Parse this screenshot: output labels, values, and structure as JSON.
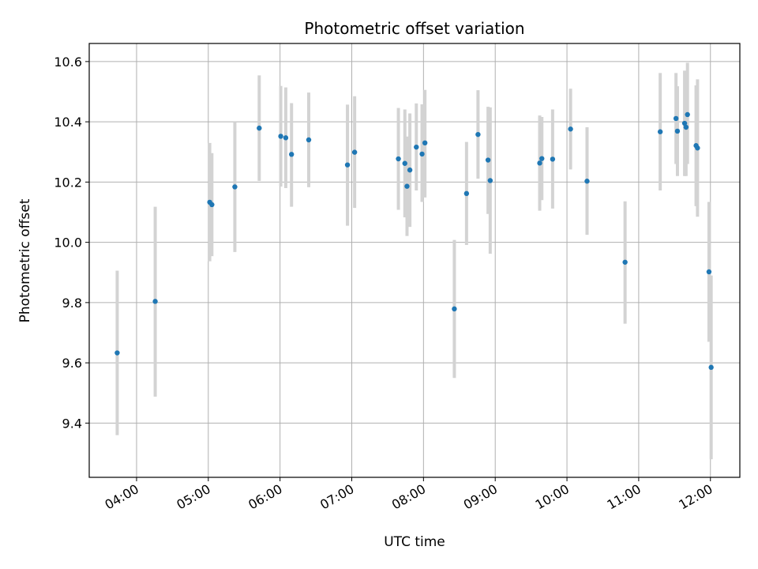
{
  "chart_data": {
    "type": "scatter",
    "title": "Photometric offset variation",
    "xlabel": "UTC time",
    "ylabel": "Photometric offset",
    "x_unit": "UTC hours",
    "x_ticks": [
      {
        "value": 4,
        "label": "04:00"
      },
      {
        "value": 5,
        "label": "05:00"
      },
      {
        "value": 6,
        "label": "06:00"
      },
      {
        "value": 7,
        "label": "07:00"
      },
      {
        "value": 8,
        "label": "08:00"
      },
      {
        "value": 9,
        "label": "09:00"
      },
      {
        "value": 10,
        "label": "10:00"
      },
      {
        "value": 11,
        "label": "11:00"
      },
      {
        "value": 12,
        "label": "12:00"
      }
    ],
    "y_ticks": [
      {
        "value": 9.4,
        "label": "9.4"
      },
      {
        "value": 9.6,
        "label": "9.6"
      },
      {
        "value": 9.8,
        "label": "9.8"
      },
      {
        "value": 10.0,
        "label": "10.0"
      },
      {
        "value": 10.2,
        "label": "10.2"
      },
      {
        "value": 10.4,
        "label": "10.4"
      },
      {
        "value": 10.6,
        "label": "10.6"
      }
    ],
    "xlim": [
      3.34,
      12.41
    ],
    "ylim": [
      9.22,
      10.66
    ],
    "grid": true,
    "colors": {
      "point": "#1f77b4",
      "errorbar": "#d3d3d3",
      "grid": "#b0b0b0"
    },
    "points": [
      {
        "x": 3.73,
        "y": 9.633,
        "lo": 9.36,
        "hi": 9.906
      },
      {
        "x": 4.26,
        "y": 9.804,
        "lo": 9.488,
        "hi": 10.118
      },
      {
        "x": 5.02,
        "y": 10.133,
        "lo": 9.937,
        "hi": 10.33
      },
      {
        "x": 5.05,
        "y": 10.125,
        "lo": 9.954,
        "hi": 10.296
      },
      {
        "x": 5.37,
        "y": 10.184,
        "lo": 9.968,
        "hi": 10.4
      },
      {
        "x": 5.71,
        "y": 10.379,
        "lo": 10.204,
        "hi": 10.554
      },
      {
        "x": 6.01,
        "y": 10.352,
        "lo": 10.185,
        "hi": 10.519
      },
      {
        "x": 6.08,
        "y": 10.347,
        "lo": 10.18,
        "hi": 10.514
      },
      {
        "x": 6.16,
        "y": 10.292,
        "lo": 10.118,
        "hi": 10.462
      },
      {
        "x": 6.4,
        "y": 10.34,
        "lo": 10.183,
        "hi": 10.497
      },
      {
        "x": 6.94,
        "y": 10.257,
        "lo": 10.055,
        "hi": 10.457
      },
      {
        "x": 7.04,
        "y": 10.299,
        "lo": 10.114,
        "hi": 10.485
      },
      {
        "x": 7.65,
        "y": 10.277,
        "lo": 10.108,
        "hi": 10.446
      },
      {
        "x": 7.74,
        "y": 10.262,
        "lo": 10.083,
        "hi": 10.441
      },
      {
        "x": 7.77,
        "y": 10.186,
        "lo": 10.021,
        "hi": 10.351
      },
      {
        "x": 7.81,
        "y": 10.24,
        "lo": 10.051,
        "hi": 10.428
      },
      {
        "x": 7.9,
        "y": 10.316,
        "lo": 10.172,
        "hi": 10.461
      },
      {
        "x": 7.98,
        "y": 10.293,
        "lo": 10.134,
        "hi": 10.458
      },
      {
        "x": 8.02,
        "y": 10.33,
        "lo": 10.149,
        "hi": 10.506
      },
      {
        "x": 8.43,
        "y": 9.779,
        "lo": 9.55,
        "hi": 10.008
      },
      {
        "x": 8.6,
        "y": 10.162,
        "lo": 9.991,
        "hi": 10.333
      },
      {
        "x": 8.76,
        "y": 10.358,
        "lo": 10.211,
        "hi": 10.505
      },
      {
        "x": 8.9,
        "y": 10.273,
        "lo": 10.094,
        "hi": 10.45
      },
      {
        "x": 8.93,
        "y": 10.205,
        "lo": 9.962,
        "hi": 10.448
      },
      {
        "x": 9.62,
        "y": 10.263,
        "lo": 10.105,
        "hi": 10.421
      },
      {
        "x": 9.65,
        "y": 10.278,
        "lo": 10.14,
        "hi": 10.416
      },
      {
        "x": 9.8,
        "y": 10.276,
        "lo": 10.112,
        "hi": 10.441
      },
      {
        "x": 10.05,
        "y": 10.376,
        "lo": 10.242,
        "hi": 10.51
      },
      {
        "x": 10.28,
        "y": 10.203,
        "lo": 10.025,
        "hi": 10.382
      },
      {
        "x": 10.81,
        "y": 9.934,
        "lo": 9.73,
        "hi": 10.136
      },
      {
        "x": 11.3,
        "y": 10.367,
        "lo": 10.172,
        "hi": 10.562
      },
      {
        "x": 11.52,
        "y": 10.411,
        "lo": 10.26,
        "hi": 10.562
      },
      {
        "x": 11.54,
        "y": 10.369,
        "lo": 10.22,
        "hi": 10.518
      },
      {
        "x": 11.64,
        "y": 10.395,
        "lo": 10.22,
        "hi": 10.57
      },
      {
        "x": 11.66,
        "y": 10.382,
        "lo": 10.22,
        "hi": 10.544
      },
      {
        "x": 11.68,
        "y": 10.424,
        "lo": 10.26,
        "hi": 10.596
      },
      {
        "x": 11.8,
        "y": 10.321,
        "lo": 10.12,
        "hi": 10.521
      },
      {
        "x": 11.82,
        "y": 10.313,
        "lo": 10.085,
        "hi": 10.541
      },
      {
        "x": 11.98,
        "y": 9.902,
        "lo": 9.67,
        "hi": 10.134
      },
      {
        "x": 12.01,
        "y": 9.585,
        "lo": 9.28,
        "hi": 9.89
      }
    ]
  }
}
